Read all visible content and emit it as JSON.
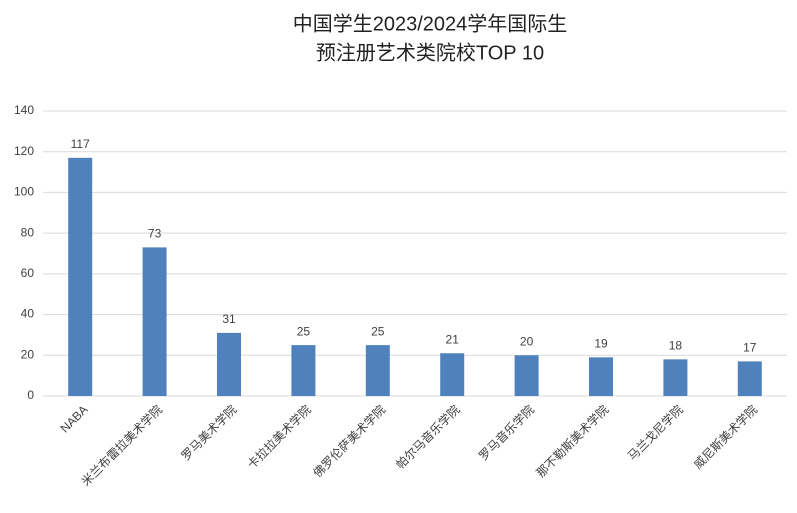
{
  "chart_data": {
    "type": "bar",
    "title": [
      "中国学生2023/2024学年国际生",
      "预注册艺术类院校TOP 10"
    ],
    "categories": [
      "NABA",
      "米兰布雷拉美术学院",
      "罗马美术学院",
      "卡拉拉美术学院",
      "佛罗伦萨美术学院",
      "帕尔马音乐学院",
      "罗马音乐学院",
      "那不勒斯美术学院",
      "马兰戈尼学院",
      "威尼斯美术学院"
    ],
    "values": [
      117,
      73,
      31,
      25,
      25,
      21,
      20,
      19,
      18,
      17
    ],
    "color": "#4f81bd",
    "ylim": [
      0,
      140
    ],
    "yticks": [
      0,
      20,
      40,
      60,
      80,
      100,
      120,
      140
    ],
    "grid": true
  }
}
